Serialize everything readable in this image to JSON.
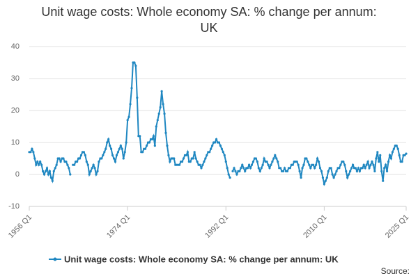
{
  "chart_data": {
    "type": "line",
    "title": "Unit wage costs: Whole economy SA: % change per annum: UK",
    "source": "Source:",
    "categories": [
      "1956 Q1",
      null,
      null,
      null,
      null,
      null,
      null,
      null,
      null,
      null,
      null,
      null,
      null,
      null,
      null,
      null,
      null,
      null,
      null,
      null,
      null,
      null,
      null,
      null,
      null,
      null,
      null,
      null,
      null,
      null,
      null,
      null,
      null,
      null,
      null,
      null,
      null,
      null,
      null,
      null,
      null,
      null,
      null,
      null,
      null,
      null,
      null,
      null,
      null,
      null,
      null,
      null,
      null,
      null,
      null,
      null,
      null,
      null,
      null,
      null,
      null,
      null,
      null,
      null,
      null,
      null,
      null,
      null,
      null,
      null,
      null,
      null,
      "1974 Q1",
      null,
      null,
      null,
      null,
      null,
      null,
      null,
      null,
      null,
      null,
      null,
      null,
      null,
      null,
      null,
      null,
      null,
      null,
      null,
      null,
      null,
      null,
      null,
      null,
      null,
      null,
      null,
      null,
      null,
      null,
      null,
      null,
      null,
      null,
      null,
      null,
      null,
      null,
      null,
      null,
      null,
      null,
      null,
      null,
      null,
      null,
      null,
      null,
      null,
      null,
      null,
      null,
      null,
      null,
      null,
      null,
      null,
      null,
      null,
      null,
      null,
      null,
      null,
      null,
      null,
      null,
      null,
      null,
      null,
      null,
      null,
      "1992 Q1",
      null,
      null,
      null,
      null,
      null,
      null,
      null,
      null,
      null,
      null,
      null,
      null,
      null,
      null,
      null,
      null,
      null,
      null,
      null,
      null,
      null,
      null,
      null,
      null,
      null,
      null,
      null,
      null,
      null,
      null,
      null,
      null,
      null,
      null,
      null,
      null,
      null,
      null,
      null,
      null,
      null,
      null,
      null,
      null,
      null,
      null,
      null,
      null,
      null,
      null,
      null,
      null,
      null,
      null,
      null,
      null,
      null,
      null,
      null,
      null,
      null,
      null,
      null,
      null,
      null,
      null,
      null,
      null,
      null,
      null,
      null,
      "2010 Q1",
      null,
      null,
      null,
      null,
      null,
      null,
      null,
      null,
      null,
      null,
      null,
      null,
      null,
      null,
      null,
      null,
      null,
      null,
      null,
      null,
      null,
      null,
      null,
      null,
      null,
      null,
      null,
      null,
      null,
      null,
      null,
      null,
      null,
      null,
      null,
      null,
      null,
      null,
      null,
      null,
      null,
      null,
      null,
      null,
      null,
      null,
      null,
      null,
      null,
      null,
      null,
      null,
      null,
      null,
      null,
      null,
      null,
      null,
      null,
      "2025 Q1"
    ],
    "series": [
      {
        "name": "Unit wage costs: Whole economy SA: % change per annum: UK",
        "color": "#1f87c1",
        "values": [
          7,
          7,
          8,
          7,
          5,
          3,
          4,
          3,
          4,
          3,
          1,
          0,
          1,
          2,
          0,
          1,
          -1,
          -2,
          1,
          2,
          3,
          5,
          5,
          4,
          5,
          5,
          4,
          4,
          3,
          2,
          0,
          null,
          3,
          3,
          4,
          4,
          5,
          5,
          6,
          7,
          7,
          6,
          4,
          3,
          0,
          1,
          2,
          3,
          2,
          0,
          1,
          4,
          5,
          5,
          6,
          7,
          8,
          10,
          11,
          9,
          8,
          6,
          5,
          4,
          6,
          7,
          8,
          9,
          8,
          5,
          7,
          10,
          17,
          18,
          22,
          27,
          35,
          35,
          34,
          24,
          12,
          12,
          7,
          7,
          8,
          8,
          9,
          10,
          10,
          11,
          11,
          12,
          9,
          15,
          17,
          19,
          21,
          26,
          22,
          19,
          13,
          9,
          6,
          4,
          5,
          5,
          5,
          3,
          3,
          3,
          3,
          4,
          4,
          5,
          6,
          6,
          7,
          4,
          4,
          5,
          5,
          7,
          5,
          4,
          3,
          3,
          2,
          3,
          4,
          5,
          6,
          7,
          7,
          8,
          9,
          10,
          10,
          11,
          10,
          10,
          9,
          8,
          7,
          6,
          4,
          2,
          0,
          -1,
          null,
          1,
          2,
          1,
          0,
          1,
          1,
          2,
          3,
          2,
          1,
          2,
          2,
          3,
          2,
          3,
          4,
          5,
          5,
          4,
          2,
          1,
          2,
          3,
          5,
          4,
          4,
          3,
          2,
          3,
          4,
          5,
          6,
          5,
          4,
          2,
          2,
          1,
          1,
          2,
          1,
          1,
          2,
          2,
          3,
          3,
          4,
          4,
          4,
          3,
          1,
          -1,
          2,
          3,
          5,
          5,
          4,
          3,
          2,
          3,
          3,
          2,
          3,
          5,
          4,
          2,
          1,
          -1,
          -3,
          -2,
          -1,
          1,
          2,
          2,
          0,
          -1,
          0,
          1,
          2,
          2,
          3,
          4,
          4,
          3,
          1,
          -1,
          0,
          1,
          2,
          3,
          2,
          2,
          1,
          2,
          1,
          2,
          2,
          3,
          2,
          3,
          4,
          2,
          3,
          4,
          3,
          1,
          5,
          7,
          4,
          6,
          1,
          -2,
          2,
          3,
          1,
          4,
          6,
          5,
          7,
          8,
          9,
          9,
          8,
          6,
          4,
          4,
          6,
          6,
          6.5
        ]
      }
    ],
    "ylim": [
      -10,
      40
    ],
    "yticks": [
      -10,
      0,
      10,
      20,
      30,
      40
    ],
    "grid": true
  }
}
